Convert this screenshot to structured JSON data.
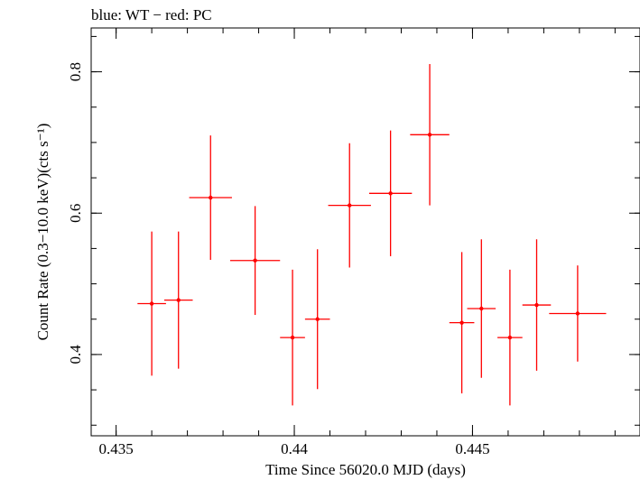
{
  "chart_data": {
    "type": "scatter",
    "title": "blue: WT − red: PC",
    "xlabel": "Time Since 56020.0 MJD (days)",
    "ylabel": "Count Rate (0.3−10.0 keV)(cts s⁻¹)",
    "xlim": [
      0.4343,
      0.4497
    ],
    "ylim": [
      0.285,
      0.862
    ],
    "x_ticks": [
      {
        "value": 0.435,
        "label": "0.435"
      },
      {
        "value": 0.44,
        "label": "0.44"
      },
      {
        "value": 0.445,
        "label": "0.445"
      }
    ],
    "y_ticks": [
      {
        "value": 0.4,
        "label": "0.4"
      },
      {
        "value": 0.6,
        "label": "0.6"
      },
      {
        "value": 0.8,
        "label": "0.8"
      }
    ],
    "x_minor_step": 0.001,
    "y_minor_step": 0.05,
    "series": [
      {
        "name": "PC",
        "color": "#ff0000",
        "points": [
          {
            "x": 0.436,
            "xerr": 0.0004,
            "y": 0.472,
            "yerr": 0.102
          },
          {
            "x": 0.43675,
            "xerr": 0.0004,
            "y": 0.477,
            "yerr": 0.097
          },
          {
            "x": 0.43765,
            "xerr": 0.0006,
            "y": 0.622,
            "yerr": 0.088
          },
          {
            "x": 0.4389,
            "xerr": 0.0007,
            "y": 0.533,
            "yerr": 0.077
          },
          {
            "x": 0.43995,
            "xerr": 0.00035,
            "y": 0.424,
            "yerr": 0.096
          },
          {
            "x": 0.44065,
            "xerr": 0.00035,
            "y": 0.45,
            "yerr": 0.099
          },
          {
            "x": 0.44155,
            "xerr": 0.0006,
            "y": 0.611,
            "yerr": 0.088
          },
          {
            "x": 0.4427,
            "xerr": 0.0006,
            "y": 0.628,
            "yerr": 0.089
          },
          {
            "x": 0.4438,
            "xerr": 0.00055,
            "y": 0.711,
            "yerr": 0.1
          },
          {
            "x": 0.4447,
            "xerr": 0.00035,
            "y": 0.445,
            "yerr": 0.1
          },
          {
            "x": 0.44525,
            "xerr": 0.0004,
            "y": 0.465,
            "yerr": 0.098
          },
          {
            "x": 0.44605,
            "xerr": 0.00035,
            "y": 0.424,
            "yerr": 0.096
          },
          {
            "x": 0.4468,
            "xerr": 0.0004,
            "y": 0.47,
            "yerr": 0.093
          },
          {
            "x": 0.44795,
            "xerr": 0.0008,
            "y": 0.458,
            "yerr": 0.068
          }
        ]
      }
    ]
  }
}
